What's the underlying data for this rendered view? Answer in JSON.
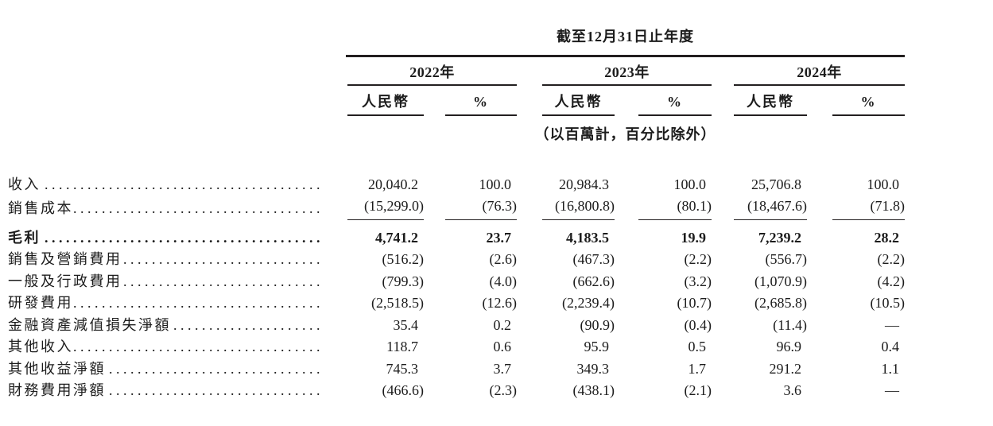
{
  "table": {
    "title": "截至12月31日止年度",
    "unit_note": "（以百萬計，百分比除外）",
    "year_groups": [
      {
        "year": "2022年",
        "col1": "人民幣",
        "col2": "%"
      },
      {
        "year": "2023年",
        "col1": "人民幣",
        "col2": "%"
      },
      {
        "year": "2024年",
        "col1": "人民幣",
        "col2": "%"
      }
    ],
    "rows": [
      {
        "label": "收入",
        "values": [
          "20,040.2",
          "100.0",
          "20,984.3",
          "100.0",
          "25,706.8",
          "100.0"
        ]
      },
      {
        "label": "銷售成本",
        "values": [
          "(15,299.0)",
          "(76.3)",
          "(16,800.8)",
          "(80.1)",
          "(18,467.6)",
          "(71.8)"
        ]
      },
      {
        "label": "毛利",
        "values": [
          "4,741.2",
          "23.7",
          "4,183.5",
          "19.9",
          "7,239.2",
          "28.2"
        ]
      },
      {
        "label": "銷售及營銷費用",
        "values": [
          "(516.2)",
          "(2.6)",
          "(467.3)",
          "(2.2)",
          "(556.7)",
          "(2.2)"
        ]
      },
      {
        "label": "一般及行政費用",
        "values": [
          "(799.3)",
          "(4.0)",
          "(662.6)",
          "(3.2)",
          "(1,070.9)",
          "(4.2)"
        ]
      },
      {
        "label": "研發費用",
        "values": [
          "(2,518.5)",
          "(12.6)",
          "(2,239.4)",
          "(10.7)",
          "(2,685.8)",
          "(10.5)"
        ]
      },
      {
        "label": "金融資產減值損失淨額",
        "values": [
          "35.4",
          "0.2",
          "(90.9)",
          "(0.4)",
          "(11.4)",
          "—"
        ]
      },
      {
        "label": "其他收入",
        "values": [
          "118.7",
          "0.6",
          "95.9",
          "0.5",
          "96.9",
          "0.4"
        ]
      },
      {
        "label": "其他收益淨額",
        "values": [
          "745.3",
          "3.7",
          "349.3",
          "1.7",
          "291.2",
          "1.1"
        ]
      },
      {
        "label": "財務費用淨額",
        "values": [
          "(466.6)",
          "(2.3)",
          "(438.1)",
          "(2.1)",
          "3.6",
          "—"
        ]
      }
    ]
  },
  "colors": {
    "text": "#1c1c1c",
    "rule": "#231f20",
    "background": "#ffffff"
  }
}
